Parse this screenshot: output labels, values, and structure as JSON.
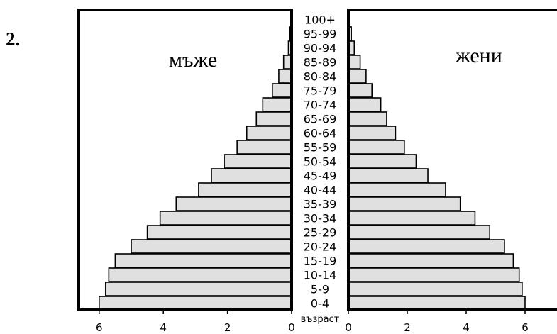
{
  "question_number": "2.",
  "chart_data": {
    "type": "bar",
    "subtype": "population-pyramid",
    "title": "",
    "categories": [
      "0-4",
      "5-9",
      "10-14",
      "15-19",
      "20-24",
      "25-29",
      "30-34",
      "35-39",
      "40-44",
      "45-49",
      "50-54",
      "55-59",
      "60-64",
      "65-69",
      "70-74",
      "75-79",
      "80-84",
      "85-89",
      "90-94",
      "95-99",
      "100+"
    ],
    "series": [
      {
        "name": "мъже",
        "side": "left",
        "values": [
          6.0,
          5.8,
          5.7,
          5.5,
          5.0,
          4.5,
          4.1,
          3.6,
          2.9,
          2.5,
          2.1,
          1.7,
          1.4,
          1.1,
          0.9,
          0.6,
          0.4,
          0.25,
          0.1,
          0.05,
          0.0
        ]
      },
      {
        "name": "жени",
        "side": "right",
        "values": [
          6.0,
          5.9,
          5.8,
          5.6,
          5.3,
          4.8,
          4.3,
          3.8,
          3.3,
          2.7,
          2.3,
          1.9,
          1.6,
          1.3,
          1.1,
          0.8,
          0.6,
          0.4,
          0.2,
          0.1,
          0.0
        ]
      }
    ],
    "x_ticks": [
      "6",
      "4",
      "2",
      "0"
    ],
    "x_ticks_right": [
      "0",
      "2",
      "4",
      "6"
    ],
    "age_axis_label": "възраст",
    "xlim": [
      0,
      7
    ],
    "bar_color": "#e0e0e0",
    "border_color": "#000000"
  }
}
